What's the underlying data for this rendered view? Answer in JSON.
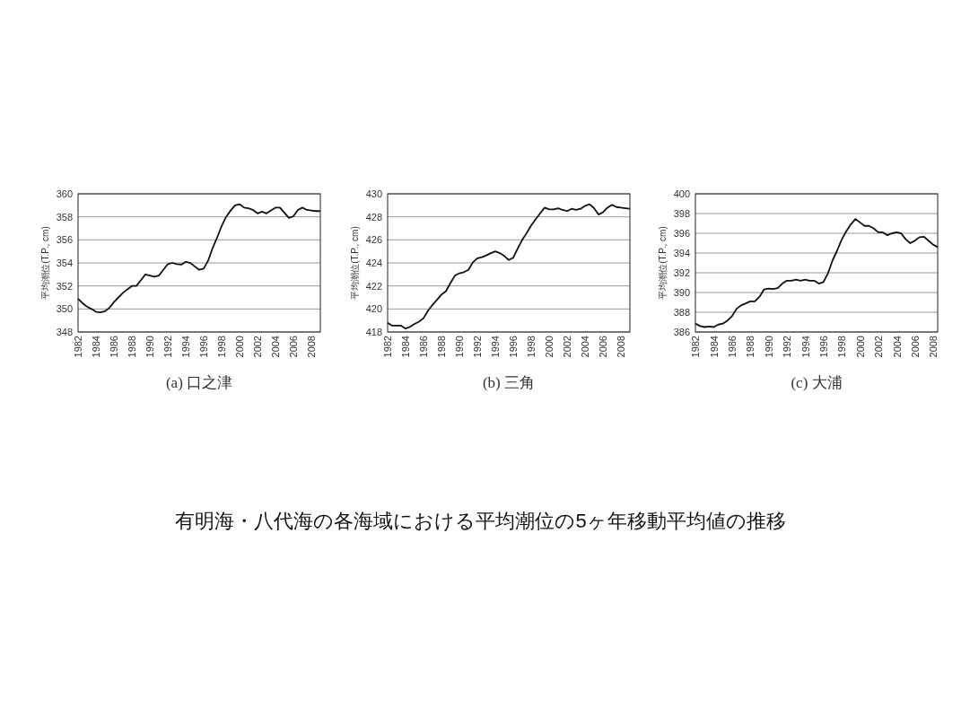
{
  "chart_data": [
    {
      "type": "line",
      "title": "(a) 口之津",
      "ylabel": "平均潮位(T.P., cm)",
      "annotations": [
        "有明海・八代海の各海域における平均潮位の5ヶ年移動平均値の推移"
      ],
      "grid": "y",
      "xlim": [
        1982,
        2009
      ],
      "xticks": [
        1982,
        1984,
        1986,
        1988,
        1990,
        1992,
        1994,
        1996,
        1998,
        2000,
        2002,
        2004,
        2006,
        2008
      ],
      "ylim": [
        348,
        360
      ],
      "yticks": [
        348,
        350,
        352,
        354,
        356,
        358,
        360
      ],
      "x": [
        1982,
        1982.5,
        1983,
        1983.5,
        1984,
        1984.5,
        1985,
        1985.5,
        1986,
        1986.5,
        1987,
        1987.5,
        1988,
        1988.5,
        1989,
        1989.5,
        1990,
        1990.5,
        1991,
        1991.5,
        1992,
        1992.5,
        1993,
        1993.5,
        1994,
        1994.5,
        1995,
        1995.5,
        1996,
        1996.5,
        1997,
        1997.5,
        1998,
        1998.5,
        1999,
        1999.5,
        2000,
        2000.5,
        2001,
        2001.5,
        2002,
        2002.5,
        2003,
        2003.5,
        2004,
        2004.5,
        2005,
        2005.5,
        2006,
        2006.5,
        2007,
        2007.5,
        2008,
        2008.5,
        2009
      ],
      "series": [
        {
          "color": "#111111",
          "values": [
            350.9,
            350.5,
            350.2,
            350.0,
            349.75,
            349.7,
            349.8,
            350.1,
            350.6,
            351.0,
            351.4,
            351.7,
            352.0,
            352.0,
            352.5,
            353.0,
            352.9,
            352.8,
            352.9,
            353.4,
            353.9,
            354.0,
            353.9,
            353.85,
            354.1,
            354.0,
            353.7,
            353.4,
            353.5,
            354.2,
            355.3,
            356.2,
            357.2,
            358.0,
            358.55,
            359.0,
            359.1,
            358.8,
            358.75,
            358.6,
            358.3,
            358.45,
            358.3,
            358.55,
            358.8,
            358.8,
            358.35,
            357.9,
            358.05,
            358.6,
            358.8,
            358.6,
            358.55,
            358.5,
            358.5
          ]
        }
      ]
    },
    {
      "type": "line",
      "title": "(b) 三角",
      "ylabel": "平均潮位(T.P., cm)",
      "grid": "y",
      "xlim": [
        1982,
        2009
      ],
      "xticks": [
        1982,
        1984,
        1986,
        1988,
        1990,
        1992,
        1994,
        1996,
        1998,
        2000,
        2002,
        2004,
        2006,
        2008
      ],
      "ylim": [
        418,
        430
      ],
      "yticks": [
        418,
        420,
        422,
        424,
        426,
        428,
        430
      ],
      "x": [
        1982,
        1982.5,
        1983,
        1983.5,
        1984,
        1984.5,
        1985,
        1985.5,
        1986,
        1986.5,
        1987,
        1987.5,
        1988,
        1988.5,
        1989,
        1989.5,
        1990,
        1990.5,
        1991,
        1991.5,
        1992,
        1992.5,
        1993,
        1993.5,
        1994,
        1994.5,
        1995,
        1995.5,
        1996,
        1996.5,
        1997,
        1997.5,
        1998,
        1998.5,
        1999,
        1999.5,
        2000,
        2000.5,
        2001,
        2001.5,
        2002,
        2002.5,
        2003,
        2003.5,
        2004,
        2004.5,
        2005,
        2005.5,
        2006,
        2006.5,
        2007,
        2007.5,
        2008,
        2008.5,
        2009
      ],
      "series": [
        {
          "color": "#111111",
          "values": [
            418.8,
            418.55,
            418.55,
            418.55,
            418.3,
            418.45,
            418.7,
            418.9,
            419.2,
            419.85,
            420.35,
            420.8,
            421.25,
            421.55,
            422.25,
            422.9,
            423.1,
            423.2,
            423.4,
            424.05,
            424.4,
            424.5,
            424.65,
            424.85,
            425.0,
            424.85,
            424.6,
            424.25,
            424.45,
            425.25,
            426.0,
            426.6,
            427.25,
            427.8,
            428.3,
            428.8,
            428.65,
            428.65,
            428.75,
            428.6,
            428.5,
            428.7,
            428.6,
            428.7,
            428.95,
            429.1,
            428.75,
            428.2,
            428.4,
            428.8,
            429.05,
            428.85,
            428.8,
            428.75,
            428.7
          ]
        }
      ]
    },
    {
      "type": "line",
      "title": "(c) 大浦",
      "ylabel": "平均潮位(T.P., cm)",
      "grid": "y",
      "xlim": [
        1982,
        2008.5
      ],
      "xticks": [
        1982,
        1984,
        1986,
        1988,
        1990,
        1992,
        1994,
        1996,
        1998,
        2000,
        2002,
        2004,
        2006,
        2008
      ],
      "ylim": [
        386,
        400
      ],
      "yticks": [
        386,
        388,
        390,
        392,
        394,
        396,
        398,
        400
      ],
      "x": [
        1982,
        1982.5,
        1983,
        1983.5,
        1984,
        1984.5,
        1985,
        1985.5,
        1986,
        1986.5,
        1987,
        1987.5,
        1988,
        1988.5,
        1989,
        1989.5,
        1990,
        1990.5,
        1991,
        1991.5,
        1992,
        1992.5,
        1993,
        1993.5,
        1994,
        1994.5,
        1995,
        1995.5,
        1996,
        1996.5,
        1997,
        1997.5,
        1998,
        1998.5,
        1999,
        1999.5,
        2000,
        2000.5,
        2001,
        2001.5,
        2002,
        2002.5,
        2003,
        2003.5,
        2004,
        2004.5,
        2005,
        2005.5,
        2006,
        2006.5,
        2007,
        2007.5,
        2008,
        2008.5
      ],
      "series": [
        {
          "color": "#111111",
          "values": [
            386.85,
            386.6,
            386.5,
            386.55,
            386.5,
            386.75,
            386.85,
            387.15,
            387.6,
            388.35,
            388.7,
            388.9,
            389.1,
            389.1,
            389.55,
            390.3,
            390.4,
            390.35,
            390.45,
            390.9,
            391.2,
            391.2,
            391.3,
            391.2,
            391.3,
            391.2,
            391.2,
            390.9,
            391.05,
            391.95,
            393.25,
            394.25,
            395.35,
            396.2,
            396.9,
            397.45,
            397.1,
            396.75,
            396.75,
            396.5,
            396.1,
            396.1,
            395.8,
            396.0,
            396.1,
            396.0,
            395.4,
            395.0,
            395.25,
            395.6,
            395.65,
            395.25,
            394.85,
            394.6
          ]
        }
      ]
    }
  ]
}
